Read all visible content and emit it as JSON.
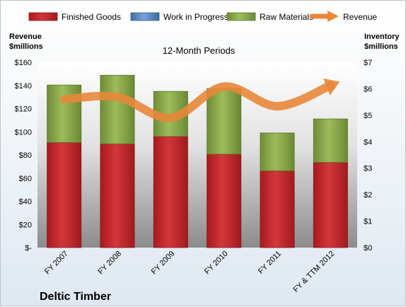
{
  "chart_data": {
    "type": "bar",
    "title": "",
    "subtitle": "12-Month Periods",
    "company": "Deltic Timber",
    "y_left_label": [
      "Revenue",
      "$millions"
    ],
    "y_right_label": [
      "Inventory",
      "$millions"
    ],
    "categories": [
      "FY 2007",
      "FY 2008",
      "FY 2009",
      "FY 2010",
      "FY 2011",
      "FY & TTM 2012"
    ],
    "y_left_ticks": [
      "$-",
      "$20",
      "$40",
      "$60",
      "$80",
      "$100",
      "$120",
      "$140",
      "$160"
    ],
    "y_right_ticks": [
      "$0",
      "$1",
      "$2",
      "$3",
      "$4",
      "$5",
      "$6",
      "$7"
    ],
    "ylim_left": [
      0,
      160
    ],
    "ylim_right": [
      0,
      7
    ],
    "stacked": true,
    "series": [
      {
        "name": "Finished Goods",
        "axis": "right",
        "color": "#c0282c",
        "values": [
          3.97,
          3.92,
          4.2,
          3.53,
          2.9,
          3.22
        ]
      },
      {
        "name": "Work in Progress",
        "axis": "right",
        "color": "#4f81bd",
        "values": [
          0,
          0,
          0,
          0,
          0,
          0
        ]
      },
      {
        "name": "Raw Materials",
        "axis": "right",
        "color": "#8fac4f",
        "values": [
          2.17,
          2.59,
          1.7,
          2.48,
          1.43,
          1.64
        ]
      },
      {
        "name": "Revenue",
        "axis": "left",
        "type": "line",
        "color": "#e8873a",
        "values": [
          128,
          130,
          112,
          139,
          122,
          140
        ]
      }
    ],
    "legend_position": "top",
    "grid": false
  }
}
